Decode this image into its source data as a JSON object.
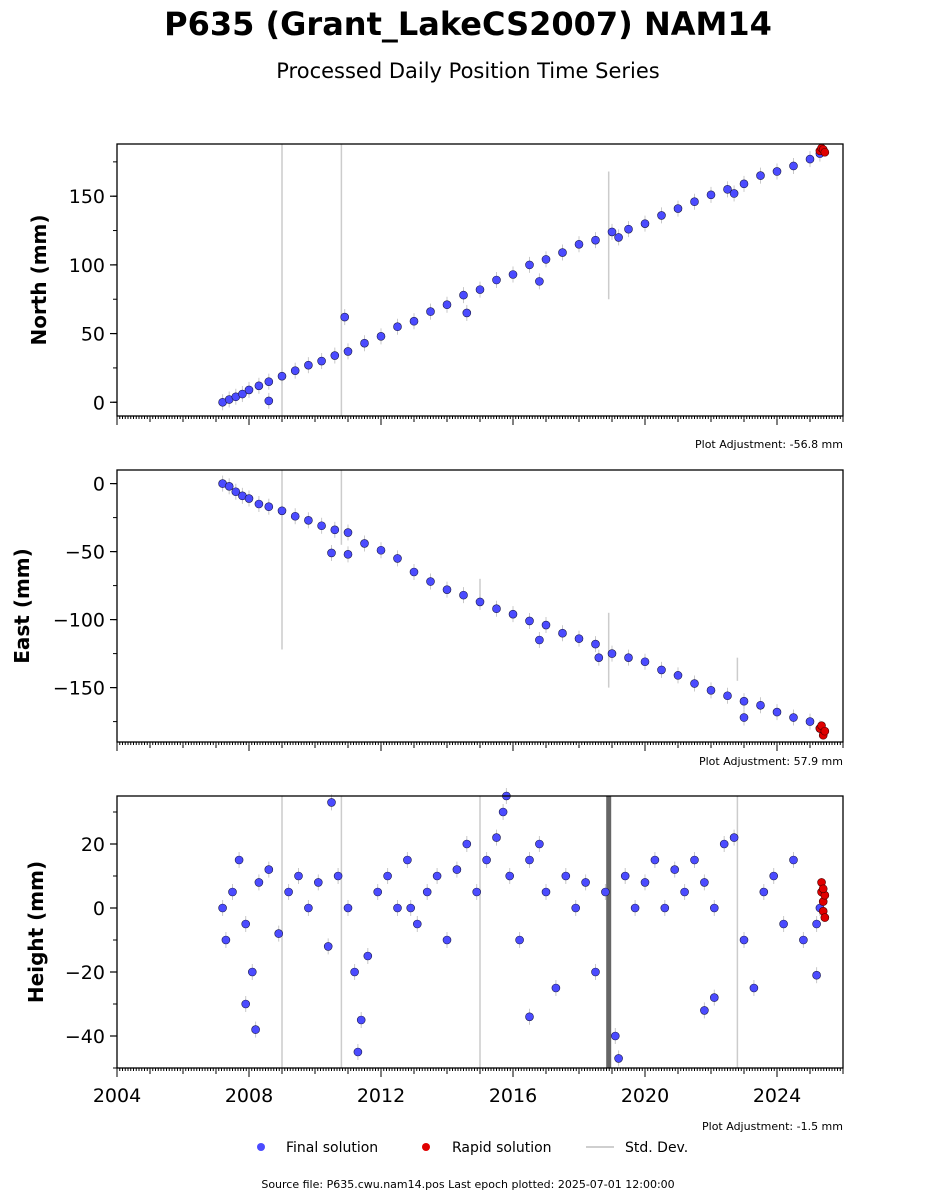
{
  "title": "P635 (Grant_LakeCS2007) NAM14",
  "subtitle": "Processed Daily Position Time Series",
  "footer": "Source file: P635.cwu.nam14.pos  Last epoch plotted: 2025-07-01 12:00:00",
  "legend": {
    "final": "Final solution",
    "rapid": "Rapid solution",
    "std": "Std. Dev."
  },
  "colors": {
    "final": "#4b4bff",
    "rapid": "#e00000",
    "std": "#bdbdbd"
  },
  "chart_data": [
    {
      "type": "scatter",
      "ylabel": "North (mm)",
      "adjustment": "Plot Adjustment: -56.8 mm",
      "xlim": [
        2004.0,
        2026.0
      ],
      "ylim": [
        -10,
        188
      ],
      "yticks": [
        0,
        50,
        100,
        150
      ],
      "ytick_labels": [
        "0",
        "50",
        "100",
        "150"
      ],
      "series": [
        {
          "name": "Final solution",
          "x": [
            2007.2,
            2007.4,
            2007.6,
            2007.8,
            2008.0,
            2008.3,
            2008.6,
            2009.0,
            2009.4,
            2009.8,
            2010.2,
            2010.6,
            2011.0,
            2011.5,
            2012.0,
            2012.5,
            2013.0,
            2013.5,
            2014.0,
            2014.5,
            2015.0,
            2015.5,
            2016.0,
            2016.5,
            2017.0,
            2017.5,
            2018.0,
            2018.5,
            2019.0,
            2019.5,
            2020.0,
            2020.5,
            2021.0,
            2021.5,
            2022.0,
            2022.5,
            2023.0,
            2023.5,
            2024.0,
            2024.5,
            2025.0,
            2025.3,
            2008.6,
            2010.9,
            2014.6,
            2016.8,
            2019.2,
            2022.7
          ],
          "y": [
            0,
            2,
            4,
            6,
            9,
            12,
            15,
            19,
            23,
            27,
            30,
            34,
            37,
            43,
            48,
            55,
            59,
            66,
            71,
            78,
            82,
            89,
            93,
            100,
            104,
            109,
            115,
            118,
            124,
            126,
            130,
            136,
            141,
            146,
            151,
            155,
            159,
            165,
            168,
            172,
            177,
            181,
            1,
            62,
            65,
            88,
            120,
            152
          ]
        },
        {
          "name": "Rapid solution",
          "x": [
            2025.3,
            2025.35,
            2025.4,
            2025.45
          ],
          "y": [
            183,
            185,
            184,
            182
          ]
        }
      ],
      "std_bars": [
        {
          "x": 2009.0,
          "low": -10,
          "high": 188
        },
        {
          "x": 2010.8,
          "low": -10,
          "high": 188
        },
        {
          "x": 2018.9,
          "low": 75,
          "high": 168
        }
      ]
    },
    {
      "type": "scatter",
      "ylabel": "East (mm)",
      "adjustment": "Plot Adjustment: 57.9 mm",
      "xlim": [
        2004.0,
        2026.0
      ],
      "ylim": [
        -190,
        10
      ],
      "yticks": [
        0,
        -50,
        -100,
        -150
      ],
      "ytick_labels": [
        "0",
        "−50",
        "−100",
        "−150"
      ],
      "series": [
        {
          "name": "Final solution",
          "x": [
            2007.2,
            2007.4,
            2007.6,
            2007.8,
            2008.0,
            2008.3,
            2008.6,
            2009.0,
            2009.4,
            2009.8,
            2010.2,
            2010.6,
            2011.0,
            2011.5,
            2012.0,
            2012.5,
            2013.0,
            2013.5,
            2014.0,
            2014.5,
            2015.0,
            2015.5,
            2016.0,
            2016.5,
            2017.0,
            2017.5,
            2018.0,
            2018.5,
            2019.0,
            2019.5,
            2020.0,
            2020.5,
            2021.0,
            2021.5,
            2022.0,
            2022.5,
            2023.0,
            2023.5,
            2024.0,
            2024.5,
            2025.0,
            2025.3,
            2010.5,
            2011.0,
            2016.8,
            2018.6,
            2023.0
          ],
          "y": [
            0,
            -2,
            -6,
            -9,
            -11,
            -15,
            -17,
            -20,
            -24,
            -27,
            -31,
            -34,
            -36,
            -44,
            -49,
            -55,
            -65,
            -72,
            -78,
            -82,
            -87,
            -92,
            -96,
            -101,
            -104,
            -110,
            -114,
            -118,
            -125,
            -128,
            -131,
            -137,
            -141,
            -147,
            -152,
            -156,
            -160,
            -163,
            -168,
            -172,
            -175,
            -180,
            -51,
            -52,
            -115,
            -128,
            -172
          ]
        },
        {
          "name": "Rapid solution",
          "x": [
            2025.3,
            2025.35,
            2025.4,
            2025.45
          ],
          "y": [
            -180,
            -178,
            -185,
            -182
          ]
        }
      ],
      "std_bars": [
        {
          "x": 2009.0,
          "low": -122,
          "high": 10
        },
        {
          "x": 2010.8,
          "low": -45,
          "high": 10
        },
        {
          "x": 2018.9,
          "low": -150,
          "high": -95
        },
        {
          "x": 2015.0,
          "low": -90,
          "high": -70
        },
        {
          "x": 2022.8,
          "low": -145,
          "high": -128
        }
      ]
    },
    {
      "type": "scatter",
      "ylabel": "Height (mm)",
      "adjustment": "Plot Adjustment: -1.5 mm",
      "xlim": [
        2004.0,
        2026.0
      ],
      "ylim": [
        -50,
        35
      ],
      "yticks": [
        20,
        0,
        -20,
        -40
      ],
      "ytick_labels": [
        "20",
        "0",
        "−20",
        "−40"
      ],
      "xticks": [
        2004,
        2008,
        2012,
        2016,
        2020,
        2024
      ],
      "xtick_labels": [
        "2004",
        "2008",
        "2012",
        "2016",
        "2020",
        "2024"
      ],
      "series": [
        {
          "name": "Final solution",
          "x": [
            2007.2,
            2007.3,
            2007.5,
            2007.7,
            2007.9,
            2008.1,
            2008.3,
            2008.6,
            2008.9,
            2009.2,
            2009.5,
            2009.8,
            2010.1,
            2010.4,
            2010.7,
            2011.0,
            2011.2,
            2011.4,
            2011.6,
            2011.9,
            2012.2,
            2012.5,
            2012.8,
            2013.1,
            2013.4,
            2013.7,
            2014.0,
            2014.3,
            2014.6,
            2014.9,
            2015.2,
            2015.5,
            2015.7,
            2015.9,
            2016.2,
            2016.5,
            2016.8,
            2017.0,
            2017.3,
            2017.6,
            2017.9,
            2018.2,
            2018.5,
            2018.8,
            2019.1,
            2019.4,
            2019.7,
            2020.0,
            2020.3,
            2020.6,
            2020.9,
            2021.2,
            2021.5,
            2021.8,
            2022.1,
            2022.4,
            2022.7,
            2023.0,
            2023.3,
            2023.6,
            2023.9,
            2024.2,
            2024.5,
            2024.8,
            2025.2,
            2025.3,
            2007.9,
            2008.2,
            2010.5,
            2011.3,
            2012.9,
            2015.8,
            2016.5,
            2019.2,
            2021.8,
            2022.1,
            2025.2
          ],
          "y": [
            0,
            -10,
            5,
            15,
            -5,
            -20,
            8,
            12,
            -8,
            5,
            10,
            0,
            8,
            -12,
            10,
            0,
            -20,
            -35,
            -15,
            5,
            10,
            0,
            15,
            -5,
            5,
            10,
            -10,
            12,
            20,
            5,
            15,
            22,
            30,
            10,
            -10,
            15,
            20,
            5,
            -25,
            10,
            0,
            8,
            -20,
            5,
            -40,
            10,
            0,
            8,
            15,
            0,
            12,
            5,
            15,
            8,
            0,
            20,
            22,
            -10,
            -25,
            5,
            10,
            -5,
            15,
            -10,
            -5,
            0,
            -30,
            -38,
            33,
            -45,
            0,
            35,
            -34,
            -47,
            -32,
            -28,
            -21
          ]
        },
        {
          "name": "Rapid solution",
          "x": [
            2025.35,
            2025.35,
            2025.4,
            2025.4,
            2025.45,
            2025.45,
            2025.4
          ],
          "y": [
            8,
            5,
            2,
            -1,
            -3,
            4,
            6
          ]
        }
      ],
      "std_bars": [
        {
          "x": 2009.0,
          "low": -50,
          "high": 35
        },
        {
          "x": 2010.8,
          "low": -50,
          "high": 35
        },
        {
          "x": 2015.0,
          "low": -50,
          "high": 35
        },
        {
          "x": 2018.9,
          "low": -50,
          "high": 35
        },
        {
          "x": 2022.8,
          "low": -50,
          "high": 35
        }
      ]
    }
  ]
}
